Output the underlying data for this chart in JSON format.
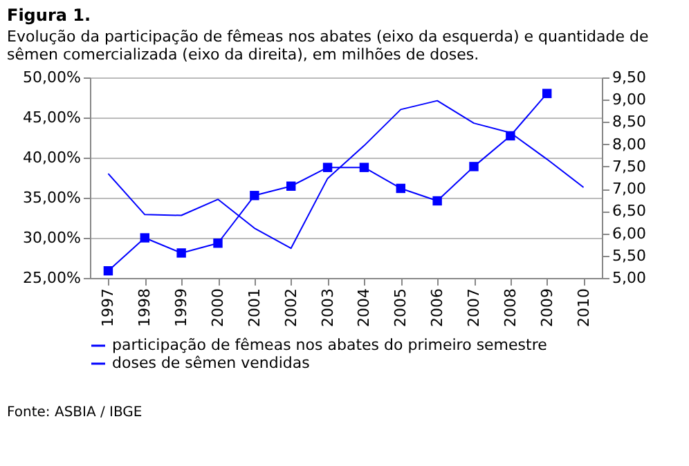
{
  "chart_data": {
    "type": "line",
    "title": "Figura 1.",
    "subtitle": "Evolução da participação de fêmeas nos abates (eixo da esquerda) e quantidade de sêmen comercializada (eixo da direita), em milhões de doses.",
    "categories": [
      "1997",
      "1998",
      "1999",
      "2000",
      "2001",
      "2002",
      "2003",
      "2004",
      "2005",
      "2006",
      "2007",
      "2008",
      "2009",
      "2010"
    ],
    "series": [
      {
        "name": "participação de fêmeas nos abates do primeiro semestre",
        "color": "#0000ff",
        "marker": "none",
        "values": [
          38.0,
          32.9,
          32.8,
          34.8,
          31.2,
          28.7,
          37.4,
          41.5,
          46.0,
          47.1,
          44.3,
          43.1,
          39.8,
          36.3
        ]
      },
      {
        "name": "doses de sêmen vendidas",
        "color": "#0000ff",
        "marker": "square",
        "axis": "y2",
        "values": [
          5.16,
          5.9,
          5.56,
          5.78,
          6.85,
          7.06,
          7.48,
          7.48,
          7.01,
          6.73,
          7.5,
          8.19,
          9.14,
          null
        ]
      }
    ],
    "ylim": [
      25,
      50
    ],
    "yticks": [
      {
        "value": 25,
        "label": "25,00%"
      },
      {
        "value": 30,
        "label": "30,00%"
      },
      {
        "value": 35,
        "label": "35,00%"
      },
      {
        "value": 40,
        "label": "40,00%"
      },
      {
        "value": 45,
        "label": "45,00%"
      },
      {
        "value": 50,
        "label": "50,00%"
      }
    ],
    "y2lim": [
      5,
      9.5
    ],
    "y2ticks": [
      {
        "value": 5,
        "label": "5,00"
      },
      {
        "value": 5.5,
        "label": "5,50"
      },
      {
        "value": 6,
        "label": "6,00"
      },
      {
        "value": 6.5,
        "label": "6,50"
      },
      {
        "value": 7,
        "label": "7,00"
      },
      {
        "value": 7.5,
        "label": "7,50"
      },
      {
        "value": 8,
        "label": "8,00"
      },
      {
        "value": 8.5,
        "label": "8,50"
      },
      {
        "value": 9,
        "label": "9,00"
      },
      {
        "value": 9.5,
        "label": "9,50"
      }
    ],
    "grid": "y",
    "legend": "bottom",
    "line_style": "solid",
    "annotations": [
      "Fonte: ASBIA / IBGE"
    ]
  }
}
